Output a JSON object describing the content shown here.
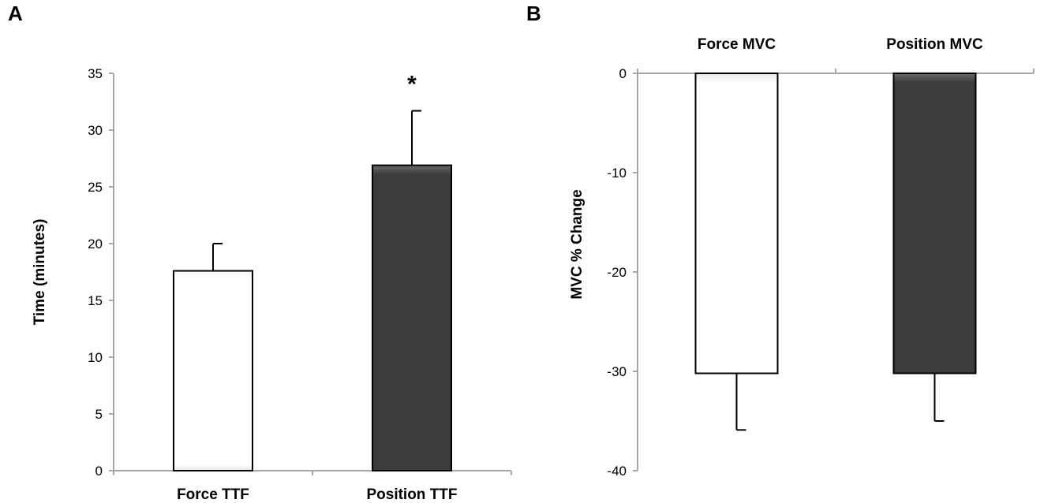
{
  "colors": {
    "force_fill": "#ffffff",
    "position_fill": "#3c3c3c",
    "axis": "#a6a6a6",
    "bar_stroke": "#000000"
  },
  "chart_data": [
    {
      "panel": "A",
      "type": "bar",
      "categories": [
        "Force TTF",
        "Position TTF"
      ],
      "values": [
        17.6,
        26.9
      ],
      "errors": [
        2.4,
        4.8
      ],
      "error_direction": "up",
      "ylabel": "Time (minutes)",
      "ylim": [
        0,
        35
      ],
      "yticks": [
        0,
        5,
        10,
        15,
        20,
        25,
        30,
        35
      ],
      "yticklabels": [
        "0",
        "5",
        "10",
        "15",
        "20",
        "25",
        "30",
        "35"
      ],
      "annotations": [
        {
          "category": "Position TTF",
          "text": "*"
        }
      ],
      "grid": false,
      "legend": "none"
    },
    {
      "panel": "B",
      "type": "bar",
      "categories": [
        "Force MVC",
        "Position MVC"
      ],
      "values": [
        -30.2,
        -30.2
      ],
      "errors": [
        5.7,
        4.8
      ],
      "error_direction": "down",
      "ylabel": "MVC % Change",
      "ylim": [
        -40,
        0
      ],
      "yticks": [
        0,
        -10,
        -20,
        -30,
        -40
      ],
      "yticklabels": [
        "0",
        "-10",
        "-20",
        "-30",
        "-40"
      ],
      "category_labels_position": "top",
      "grid": false,
      "legend": "none"
    }
  ]
}
